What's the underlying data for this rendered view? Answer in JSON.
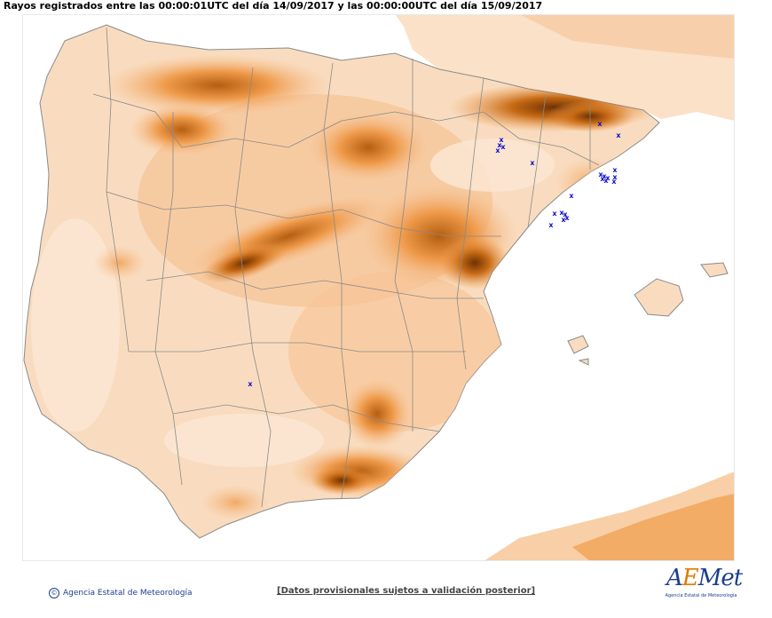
{
  "header": {
    "title": "Rayos registrados entre las 00:00:01UTC del día 14/09/2017 y las 00:00:00UTC del día 15/09/2017"
  },
  "map": {
    "marker_symbol": "x",
    "colors": {
      "sea": "#ffffff",
      "low": "#fbe6d2",
      "mid": "#f6c395",
      "high": "#ef9a4a",
      "peak": "#c56914",
      "summit": "#7a3a06",
      "border": "#8a8a8a",
      "lightning": "#1010cc"
    }
  },
  "footer": {
    "copyright_symbol": "©",
    "agency": "Agencia Estatal de Meteorología",
    "disclaimer": "[Datos provisionales sujetos a validación posterior]"
  },
  "logo": {
    "word_a": "A",
    "word_e": "E",
    "word_rest": "Met",
    "subtitle": "Agencia Estatal de Meteorología"
  }
}
